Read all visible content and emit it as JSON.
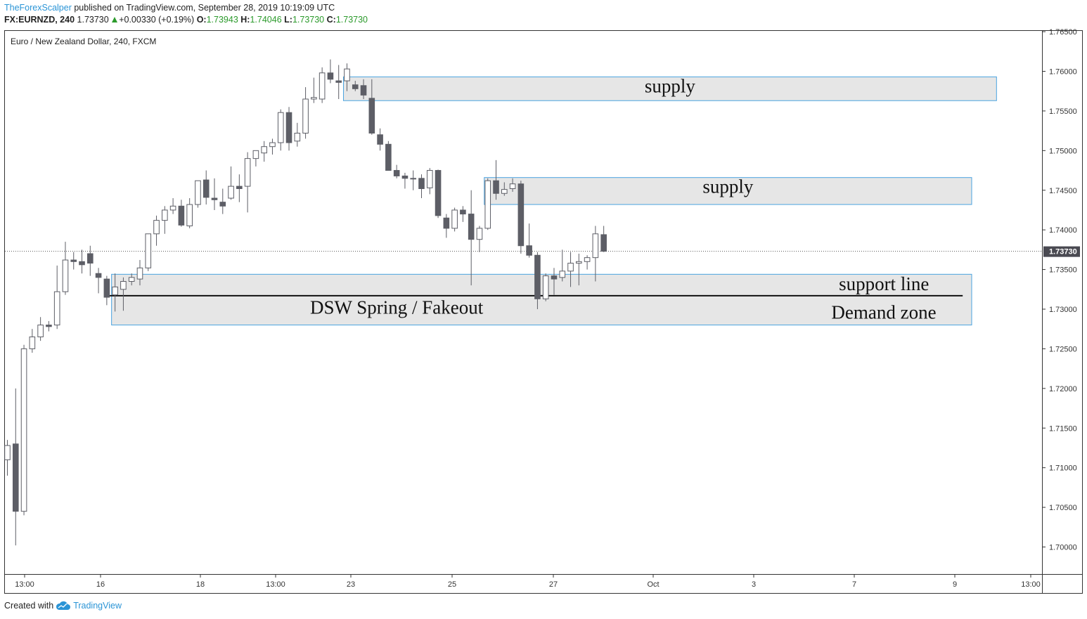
{
  "header": {
    "author": "TheForexScalper",
    "published": "published on TradingView.com, September 28, 2019 10:19:09 UTC",
    "symbol": "FX:EURNZD, 240",
    "last": "1.73730",
    "change": "+0.00330 (+0.19%)",
    "o_label": "O:",
    "o_value": "1.73943",
    "h_label": "H:",
    "h_value": "1.74046",
    "l_label": "L:",
    "l_value": "1.73730",
    "c_label": "C:",
    "c_value": "1.73730"
  },
  "chart_title": "Euro / New Zealand Dollar, 240, FXCM",
  "footer": {
    "created_with": "Created with",
    "brand": "TradingView"
  },
  "colors": {
    "bear": "#5d5e66",
    "bull": "#ffffff",
    "zone_fill": "#e6e6e6",
    "zone_border": "#4aa3e0",
    "last_price_bg": "#4a4a52"
  },
  "chart_data": {
    "type": "candlestick",
    "timeframe": "240",
    "ylim": [
      1.6952,
      1.7655
    ],
    "y_ticks": [
      "1.76500",
      "1.76000",
      "1.75500",
      "1.75000",
      "1.74500",
      "1.74000",
      "1.73500",
      "1.73000",
      "1.72500",
      "1.72000",
      "1.71500",
      "1.71000",
      "1.70500",
      "1.70000"
    ],
    "x_ticks": [
      "13:00",
      "16",
      "18",
      "13:00",
      "23",
      "25",
      "27",
      "Oct",
      "3",
      "7",
      "9",
      "13:00"
    ],
    "last_price_label": "1.73730",
    "candles": [
      {
        "o": 1.711,
        "h": 1.7135,
        "l": 1.709,
        "c": 1.7128
      },
      {
        "o": 1.713,
        "h": 1.72,
        "l": 1.7002,
        "c": 1.7045
      },
      {
        "o": 1.7045,
        "h": 1.7255,
        "l": 1.704,
        "c": 1.725
      },
      {
        "o": 1.725,
        "h": 1.7275,
        "l": 1.7245,
        "c": 1.7265
      },
      {
        "o": 1.7265,
        "h": 1.729,
        "l": 1.726,
        "c": 1.728
      },
      {
        "o": 1.728,
        "h": 1.7285,
        "l": 1.7272,
        "c": 1.7278
      },
      {
        "o": 1.728,
        "h": 1.7355,
        "l": 1.7275,
        "c": 1.7322
      },
      {
        "o": 1.7322,
        "h": 1.7385,
        "l": 1.7318,
        "c": 1.7362
      },
      {
        "o": 1.7362,
        "h": 1.7372,
        "l": 1.735,
        "c": 1.736
      },
      {
        "o": 1.736,
        "h": 1.7375,
        "l": 1.7345,
        "c": 1.7356
      },
      {
        "o": 1.737,
        "h": 1.738,
        "l": 1.7342,
        "c": 1.7358
      },
      {
        "o": 1.7345,
        "h": 1.7352,
        "l": 1.732,
        "c": 1.734
      },
      {
        "o": 1.7338,
        "h": 1.7342,
        "l": 1.7305,
        "c": 1.7315
      },
      {
        "o": 1.7318,
        "h": 1.7345,
        "l": 1.7297,
        "c": 1.7328
      },
      {
        "o": 1.7325,
        "h": 1.734,
        "l": 1.7298,
        "c": 1.7335
      },
      {
        "o": 1.7335,
        "h": 1.7345,
        "l": 1.733,
        "c": 1.734
      },
      {
        "o": 1.7338,
        "h": 1.7362,
        "l": 1.733,
        "c": 1.7352
      },
      {
        "o": 1.7352,
        "h": 1.7392,
        "l": 1.7348,
        "c": 1.7395
      },
      {
        "o": 1.7395,
        "h": 1.7418,
        "l": 1.738,
        "c": 1.7412
      },
      {
        "o": 1.7412,
        "h": 1.743,
        "l": 1.7395,
        "c": 1.7425
      },
      {
        "o": 1.7425,
        "h": 1.744,
        "l": 1.742,
        "c": 1.743
      },
      {
        "o": 1.743,
        "h": 1.7438,
        "l": 1.7404,
        "c": 1.7406
      },
      {
        "o": 1.7405,
        "h": 1.744,
        "l": 1.7402,
        "c": 1.7432
      },
      {
        "o": 1.7432,
        "h": 1.746,
        "l": 1.7428,
        "c": 1.7462
      },
      {
        "o": 1.7463,
        "h": 1.7475,
        "l": 1.7432,
        "c": 1.7441
      },
      {
        "o": 1.744,
        "h": 1.7465,
        "l": 1.7425,
        "c": 1.7438
      },
      {
        "o": 1.7435,
        "h": 1.7452,
        "l": 1.742,
        "c": 1.743
      },
      {
        "o": 1.744,
        "h": 1.748,
        "l": 1.7438,
        "c": 1.7455
      },
      {
        "o": 1.7455,
        "h": 1.747,
        "l": 1.7435,
        "c": 1.7452
      },
      {
        "o": 1.7455,
        "h": 1.7498,
        "l": 1.7422,
        "c": 1.749
      },
      {
        "o": 1.749,
        "h": 1.75,
        "l": 1.748,
        "c": 1.75
      },
      {
        "o": 1.7497,
        "h": 1.7512,
        "l": 1.7486,
        "c": 1.7505
      },
      {
        "o": 1.7505,
        "h": 1.7515,
        "l": 1.7495,
        "c": 1.751
      },
      {
        "o": 1.751,
        "h": 1.7552,
        "l": 1.75,
        "c": 1.7548
      },
      {
        "o": 1.7548,
        "h": 1.7555,
        "l": 1.75,
        "c": 1.751
      },
      {
        "o": 1.7512,
        "h": 1.7535,
        "l": 1.7505,
        "c": 1.7522
      },
      {
        "o": 1.7522,
        "h": 1.758,
        "l": 1.7515,
        "c": 1.7565
      },
      {
        "o": 1.7565,
        "h": 1.7592,
        "l": 1.756,
        "c": 1.7567
      },
      {
        "o": 1.7565,
        "h": 1.7605,
        "l": 1.756,
        "c": 1.7598
      },
      {
        "o": 1.7598,
        "h": 1.7615,
        "l": 1.7585,
        "c": 1.759
      },
      {
        "o": 1.7588,
        "h": 1.7608,
        "l": 1.7565,
        "c": 1.7586
      },
      {
        "o": 1.7588,
        "h": 1.761,
        "l": 1.7575,
        "c": 1.7603
      },
      {
        "o": 1.7583,
        "h": 1.7588,
        "l": 1.7575,
        "c": 1.7578
      },
      {
        "o": 1.7582,
        "h": 1.759,
        "l": 1.7565,
        "c": 1.757
      },
      {
        "o": 1.7566,
        "h": 1.759,
        "l": 1.752,
        "c": 1.7522
      },
      {
        "o": 1.752,
        "h": 1.7528,
        "l": 1.75,
        "c": 1.7508
      },
      {
        "o": 1.7508,
        "h": 1.7512,
        "l": 1.7475,
        "c": 1.7475
      },
      {
        "o": 1.7475,
        "h": 1.7482,
        "l": 1.7465,
        "c": 1.7468
      },
      {
        "o": 1.7468,
        "h": 1.7472,
        "l": 1.7452,
        "c": 1.7465
      },
      {
        "o": 1.7465,
        "h": 1.7475,
        "l": 1.745,
        "c": 1.7465
      },
      {
        "o": 1.7465,
        "h": 1.747,
        "l": 1.744,
        "c": 1.7452
      },
      {
        "o": 1.7453,
        "h": 1.7478,
        "l": 1.7445,
        "c": 1.7475
      },
      {
        "o": 1.7475,
        "h": 1.7476,
        "l": 1.7415,
        "c": 1.7418
      },
      {
        "o": 1.7415,
        "h": 1.742,
        "l": 1.739,
        "c": 1.7402
      },
      {
        "o": 1.7402,
        "h": 1.7428,
        "l": 1.7398,
        "c": 1.7425
      },
      {
        "o": 1.7425,
        "h": 1.743,
        "l": 1.741,
        "c": 1.742
      },
      {
        "o": 1.742,
        "h": 1.745,
        "l": 1.733,
        "c": 1.7388
      },
      {
        "o": 1.7388,
        "h": 1.7405,
        "l": 1.7372,
        "c": 1.7402
      },
      {
        "o": 1.7402,
        "h": 1.7465,
        "l": 1.74,
        "c": 1.7462
      },
      {
        "o": 1.7462,
        "h": 1.7488,
        "l": 1.7438,
        "c": 1.7446
      },
      {
        "o": 1.7446,
        "h": 1.746,
        "l": 1.7443,
        "c": 1.7451
      },
      {
        "o": 1.7452,
        "h": 1.7465,
        "l": 1.7448,
        "c": 1.7458
      },
      {
        "o": 1.7458,
        "h": 1.7462,
        "l": 1.737,
        "c": 1.738
      },
      {
        "o": 1.738,
        "h": 1.7408,
        "l": 1.7365,
        "c": 1.7368
      },
      {
        "o": 1.7368,
        "h": 1.7372,
        "l": 1.73,
        "c": 1.7313
      },
      {
        "o": 1.7313,
        "h": 1.7345,
        "l": 1.731,
        "c": 1.7342
      },
      {
        "o": 1.7342,
        "h": 1.7352,
        "l": 1.7318,
        "c": 1.7338
      },
      {
        "o": 1.734,
        "h": 1.7375,
        "l": 1.7335,
        "c": 1.7348
      },
      {
        "o": 1.7348,
        "h": 1.7372,
        "l": 1.7328,
        "c": 1.7358
      },
      {
        "o": 1.7358,
        "h": 1.737,
        "l": 1.733,
        "c": 1.736
      },
      {
        "o": 1.736,
        "h": 1.7368,
        "l": 1.735,
        "c": 1.7365
      },
      {
        "o": 1.7365,
        "h": 1.7405,
        "l": 1.7335,
        "c": 1.7395
      },
      {
        "o": 1.7394,
        "h": 1.7405,
        "l": 1.7372,
        "c": 1.7373
      }
    ],
    "annotations": [
      {
        "type": "zone",
        "label": "supply",
        "y_top": 1.7593,
        "y_bottom": 1.7563,
        "x_from_candle": 41,
        "x_to_candle": 119
      },
      {
        "type": "zone",
        "label": "supply",
        "y_top": 1.7466,
        "y_bottom": 1.7432,
        "x_from_candle": 58,
        "x_to_candle": 116
      },
      {
        "type": "zone",
        "label": "Demand zone",
        "y_top": 1.7344,
        "y_bottom": 1.728,
        "x_from_candle": 13,
        "x_to_candle": 116
      },
      {
        "type": "line",
        "label": "support line",
        "y": 1.7317,
        "x_from_candle": 12,
        "x_to_candle": 115
      },
      {
        "type": "text",
        "label": "DSW Spring / Fakeout",
        "y": 1.7302,
        "x_candle": 47
      }
    ]
  }
}
